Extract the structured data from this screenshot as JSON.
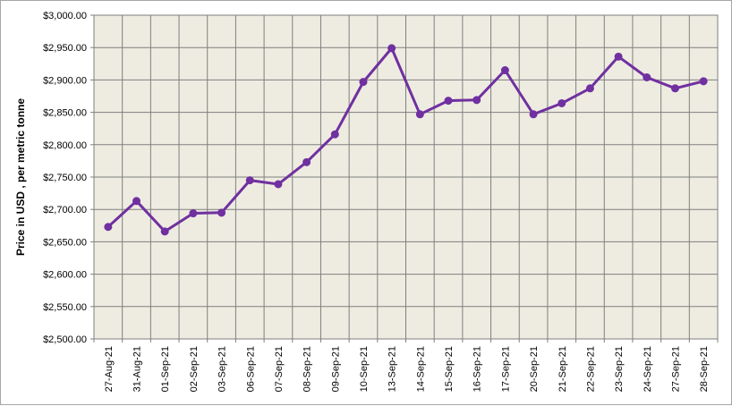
{
  "chart_data": {
    "type": "line",
    "title": "",
    "xlabel": "",
    "ylabel": "Price in USD , per metric tonne",
    "ylim": [
      2500,
      3000
    ],
    "ytick_step": 50,
    "ytick_labels": [
      "$2,500.00",
      "$2,550.00",
      "$2,600.00",
      "$2,650.00",
      "$2,700.00",
      "$2,750.00",
      "$2,800.00",
      "$2,850.00",
      "$2,900.00",
      "$2,950.00",
      "$3,000.00"
    ],
    "grid": true,
    "legend": "none",
    "categories": [
      "27-Aug-21",
      "31-Aug-21",
      "01-Sep-21",
      "02-Sep-21",
      "03-Sep-21",
      "06-Sep-21",
      "07-Sep-21",
      "08-Sep-21",
      "09-Sep-21",
      "10-Sep-21",
      "13-Sep-21",
      "14-Sep-21",
      "15-Sep-21",
      "16-Sep-21",
      "17-Sep-21",
      "20-Sep-21",
      "21-Sep-21",
      "22-Sep-21",
      "23-Sep-21",
      "24-Sep-21",
      "27-Sep-21",
      "28-Sep-21"
    ],
    "series": [
      {
        "values": [
          2673,
          2713,
          2666,
          2694,
          2695,
          2745,
          2739,
          2773,
          2816,
          2897,
          2949,
          2847,
          2868,
          2869,
          2915,
          2847,
          2864,
          2887,
          2936,
          2904,
          2887,
          2898
        ]
      }
    ],
    "colors": {
      "plot_bg": "#eeece1",
      "grid": "#7f7f7f",
      "line": "#7030a0"
    }
  }
}
